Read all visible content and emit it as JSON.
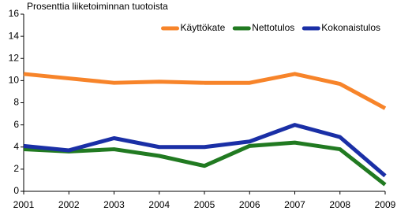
{
  "chart_data": {
    "type": "line",
    "title": "Prosenttia liiketoiminnan tuotoista",
    "categories": [
      "2001",
      "2002",
      "2003",
      "2004",
      "2005",
      "2006",
      "2007",
      "2008",
      "2009"
    ],
    "series": [
      {
        "name": "Käyttökate",
        "color": "#f7842a",
        "values": [
          10.6,
          10.2,
          9.8,
          9.9,
          9.8,
          9.8,
          10.6,
          9.7,
          7.5
        ]
      },
      {
        "name": "Nettotulos",
        "color": "#217a21",
        "values": [
          3.8,
          3.6,
          3.8,
          3.2,
          2.3,
          4.1,
          4.4,
          3.8,
          0.6
        ]
      },
      {
        "name": "Kokonaistulos",
        "color": "#1a2fa6",
        "values": [
          4.1,
          3.7,
          4.8,
          4.0,
          4.0,
          4.5,
          6.0,
          4.9,
          1.4
        ]
      }
    ],
    "ylim": [
      0,
      16
    ],
    "yticks": [
      0,
      2,
      4,
      6,
      8,
      10,
      12,
      14,
      16
    ],
    "grid": false,
    "legend": "top-right"
  }
}
